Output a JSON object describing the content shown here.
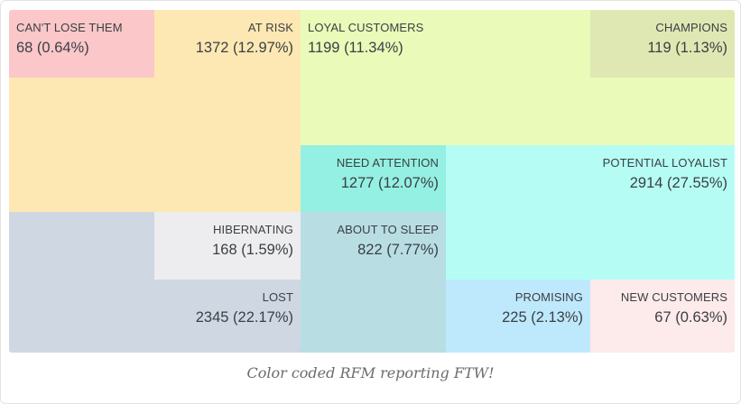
{
  "chart_data": {
    "type": "treemap",
    "segments": [
      {
        "key": "cant_lose_them",
        "label": "CAN'T LOSE THEM",
        "count": 68,
        "percent": "0.64%",
        "color": "#fbc7c9"
      },
      {
        "key": "at_risk",
        "label": "AT RISK",
        "count": 1372,
        "percent": "12.97%",
        "color": "#fde8b3"
      },
      {
        "key": "loyal_customers",
        "label": "LOYAL CUSTOMERS",
        "count": 1199,
        "percent": "11.34%",
        "color": "#eafab8"
      },
      {
        "key": "champions",
        "label": "CHAMPIONS",
        "count": 119,
        "percent": "1.13%",
        "color": "#dfe8b3"
      },
      {
        "key": "need_attention",
        "label": "NEED ATTENTION",
        "count": 1277,
        "percent": "12.07%",
        "color": "#94f0e2"
      },
      {
        "key": "potential_loyalist",
        "label": "POTENTIAL LOYALIST",
        "count": 2914,
        "percent": "27.55%",
        "color": "#b5fdf4"
      },
      {
        "key": "hibernating",
        "label": "HIBERNATING",
        "count": 168,
        "percent": "1.59%",
        "color": "#ededef"
      },
      {
        "key": "about_to_sleep",
        "label": "ABOUT TO SLEEP",
        "count": 822,
        "percent": "7.77%",
        "color": "#b8dee4"
      },
      {
        "key": "lost",
        "label": "LOST",
        "count": 2345,
        "percent": "22.17%",
        "color": "#cfd7e3"
      },
      {
        "key": "promising",
        "label": "PROMISING",
        "count": 225,
        "percent": "2.13%",
        "color": "#bee8fc"
      },
      {
        "key": "new_customers",
        "label": "NEW CUSTOMERS",
        "count": 67,
        "percent": "0.63%",
        "color": "#fdeaea"
      }
    ]
  },
  "cells": {
    "cant_lose_them": {
      "label": "CAN'T LOSE THEM",
      "value": "68 (0.64%)"
    },
    "at_risk": {
      "label": "AT RISK",
      "value": "1372 (12.97%)"
    },
    "loyal_customers": {
      "label": "LOYAL CUSTOMERS",
      "value": "1199 (11.34%)"
    },
    "champions": {
      "label": "CHAMPIONS",
      "value": "119 (1.13%)"
    },
    "need_attention": {
      "label": "NEED ATTENTION",
      "value": "1277 (12.07%)"
    },
    "potential_loyalist": {
      "label": "POTENTIAL LOYALIST",
      "value": "2914 (27.55%)"
    },
    "hibernating": {
      "label": "HIBERNATING",
      "value": "168 (1.59%)"
    },
    "about_to_sleep": {
      "label": "ABOUT TO SLEEP",
      "value": "822 (7.77%)"
    },
    "lost": {
      "label": "LOST",
      "value": "2345 (22.17%)"
    },
    "promising": {
      "label": "PROMISING",
      "value": "225 (2.13%)"
    },
    "new_customers": {
      "label": "NEW CUSTOMERS",
      "value": "67 (0.63%)"
    }
  },
  "caption": "Color coded RFM reporting FTW!"
}
